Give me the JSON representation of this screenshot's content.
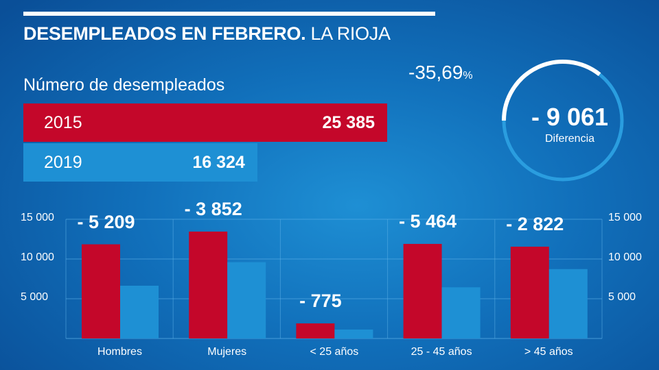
{
  "title": {
    "bold": "DESEMPLEADOS EN FEBRERO.",
    "rest": " LA RIOJA"
  },
  "subtitle": "Número de desempleados",
  "totals": [
    {
      "year": "2015",
      "value": "25 385",
      "num": 25385,
      "color": "#c4072a"
    },
    {
      "year": "2019",
      "value": "16 324",
      "num": 16324,
      "color": "#1e90d4"
    }
  ],
  "summary": {
    "percent": "-35,69",
    "percent_sign": "%",
    "difference": "- 9 061",
    "difference_label": "Diferencia",
    "arc_fraction": 0.3569
  },
  "chart_data": {
    "type": "bar",
    "categories": [
      "Hombres",
      "Mujeres",
      "< 25 años",
      "25 - 45 años",
      "> 45 años"
    ],
    "series": [
      {
        "year": "2015",
        "color": "#c4072a",
        "values": [
          11850,
          13450,
          1900,
          11900,
          11550
        ]
      },
      {
        "year": "2019",
        "color": "#1e90d4",
        "values": [
          6640,
          9600,
          1125,
          6440,
          8730
        ]
      }
    ],
    "data_labels": [
      "- 5 209",
      "- 3 852",
      "- 775",
      "- 5 464",
      "- 2 822"
    ],
    "ylim": [
      0,
      15000
    ],
    "yticks": [
      {
        "v": 5000,
        "label": "5 000"
      },
      {
        "v": 10000,
        "label": "10 000"
      },
      {
        "v": 15000,
        "label": "15 000"
      }
    ],
    "grid": true
  }
}
